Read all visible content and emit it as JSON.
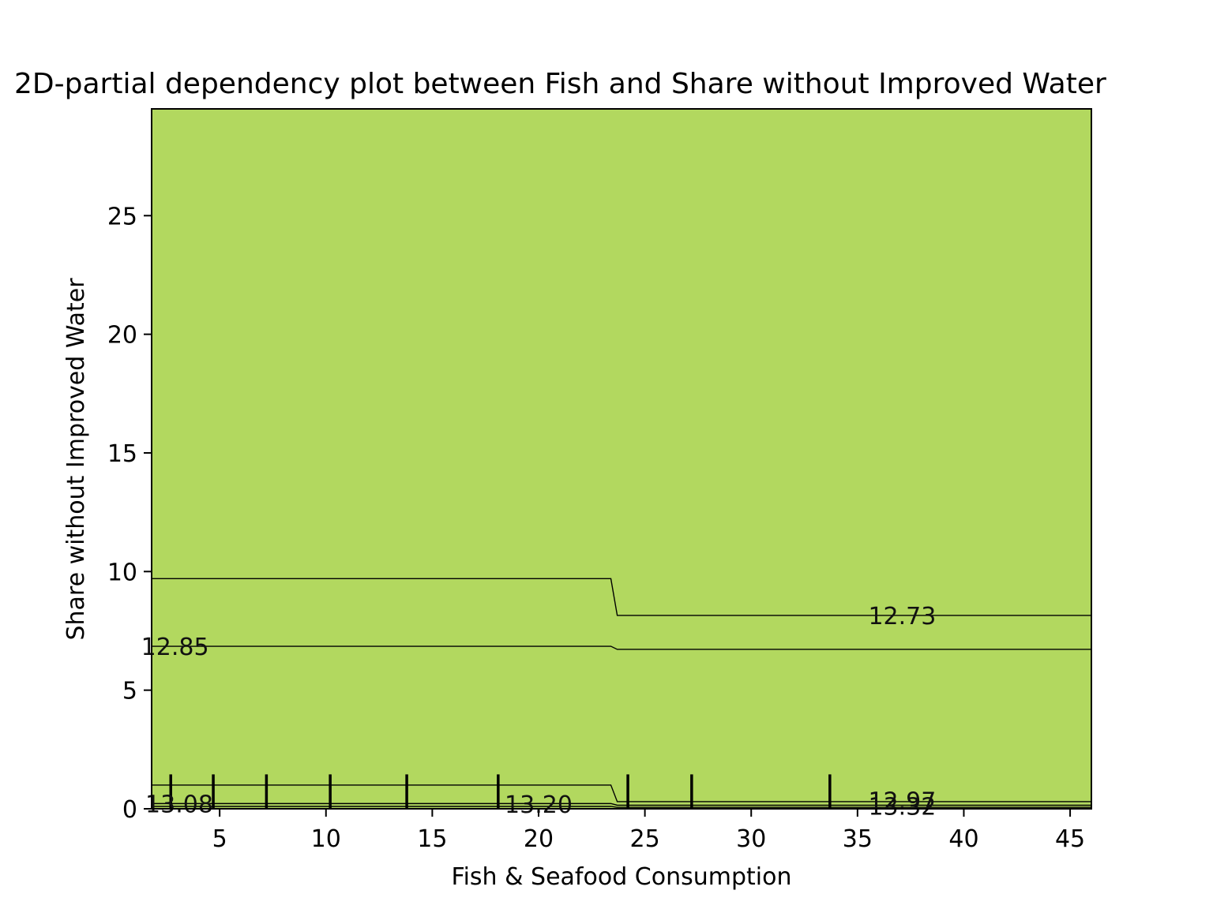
{
  "chart_data": {
    "type": "contour",
    "title": "2D-partial dependency plot between Fish and Share without Improved Water",
    "xlabel": "Fish & Seafood Consumption",
    "ylabel": "Share without Improved Water",
    "xlim": [
      1.8,
      46.0
    ],
    "ylim": [
      0,
      29.5
    ],
    "x_ticks": [
      5,
      10,
      15,
      20,
      25,
      30,
      35,
      40,
      45
    ],
    "y_ticks": [
      0,
      5,
      10,
      15,
      20,
      25
    ],
    "step_x": [
      23.4,
      23.7
    ],
    "regions": [
      {
        "level": "top",
        "color": "#76558f",
        "lower_left": 9.7,
        "lower_right": 8.15
      },
      {
        "level": "band-2",
        "color": "#6c76a6",
        "lower_left": 6.85,
        "lower_right": 6.72
      },
      {
        "level": "band-3",
        "color": "#6393ab",
        "lower_left": 1.0,
        "lower_right": 0.3
      },
      {
        "level": "band-4",
        "color": "#58aeab",
        "lower_left": 0.22,
        "lower_right": 0.15
      },
      {
        "level": "band-5",
        "color": "#62c28c",
        "lower_left": 0.1,
        "lower_right": 0.06
      },
      {
        "level": "bottom",
        "color": "#b2d85f",
        "lower_left": 0,
        "lower_right": 0
      }
    ],
    "contour_labels": [
      {
        "text": "12.73",
        "x": 37.1,
        "y": 8.15
      },
      {
        "text": "12.85",
        "x": 2.9,
        "y": 6.85
      },
      {
        "text": "13.08",
        "x": 3.1,
        "y": 0.22
      },
      {
        "text": "13.20",
        "x": 20.0,
        "y": 0.2
      },
      {
        "text": "12.97",
        "x": 37.1,
        "y": 0.35
      },
      {
        "text": "13.32",
        "x": 37.1,
        "y": 0.12
      }
    ],
    "rug_x": [
      2.7,
      4.7,
      7.2,
      10.2,
      13.8,
      18.1,
      24.2,
      27.2,
      33.7
    ]
  }
}
